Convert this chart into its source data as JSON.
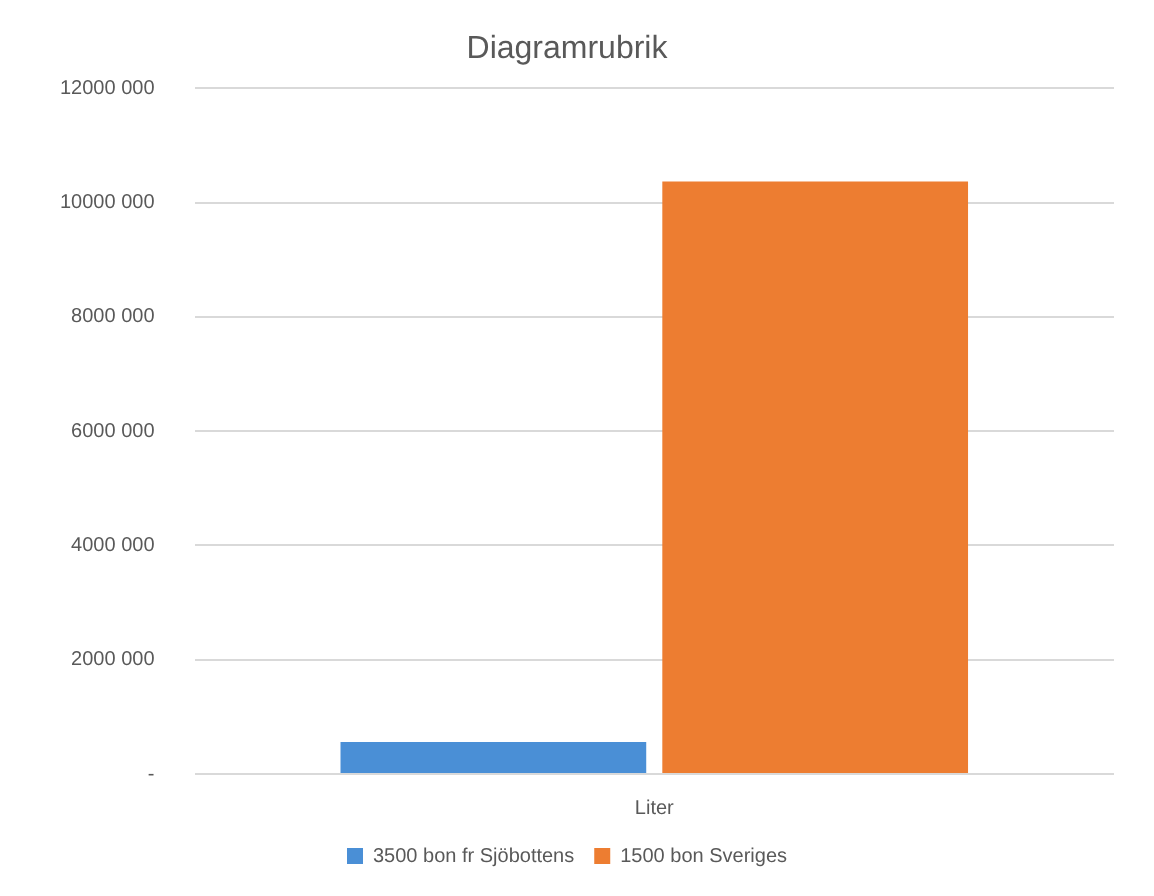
{
  "chart_data": {
    "type": "bar",
    "title": "Diagramrubrik",
    "categories": [
      "Liter"
    ],
    "series": [
      {
        "name": "3500 bon fr Sjöbottens",
        "color": "#4a8fd6",
        "values": [
          560000
        ]
      },
      {
        "name": "1500 bon Sveriges",
        "color": "#ed7d31",
        "values": [
          10370000
        ]
      }
    ],
    "ylim": [
      0,
      12000000
    ],
    "yticks": [
      {
        "value": 0,
        "label": "-"
      },
      {
        "value": 2000000,
        "label": "2000 000"
      },
      {
        "value": 4000000,
        "label": "4000 000"
      },
      {
        "value": 6000000,
        "label": "6000 000"
      },
      {
        "value": 8000000,
        "label": "8000 000"
      },
      {
        "value": 10000000,
        "label": "10000 000"
      },
      {
        "value": 12000000,
        "label": "12000 000"
      }
    ],
    "grid": "y",
    "legend": "bottom"
  }
}
